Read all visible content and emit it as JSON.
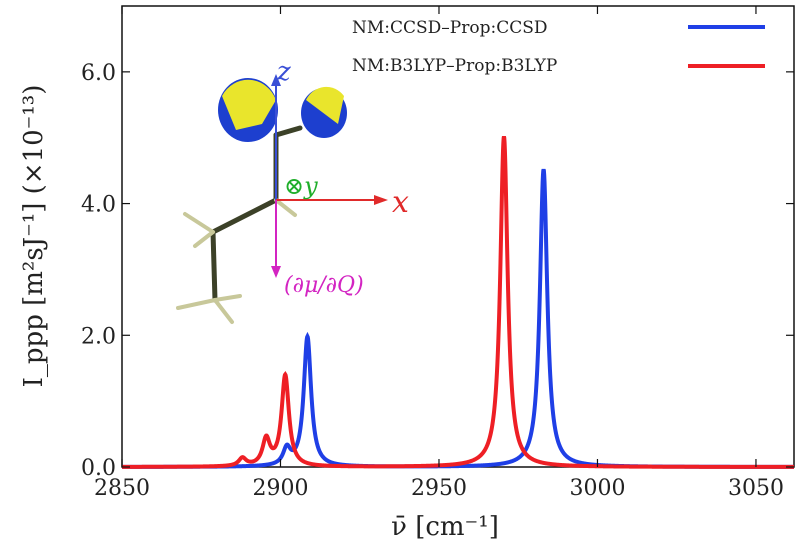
{
  "chart_data": {
    "type": "line",
    "xlabel": "ν̄ [cm⁻¹]",
    "ylabel": "I_ppp [m²sJ⁻¹] (×10⁻¹³)",
    "xlim": [
      2850,
      3062
    ],
    "ylim": [
      0,
      7.0
    ],
    "x_ticks": [
      2850,
      2900,
      2950,
      3000,
      3050
    ],
    "y_ticks": [
      0.0,
      2.0,
      4.0,
      6.0
    ],
    "x_tick_labels": [
      "2850",
      "2900",
      "2950",
      "3000",
      "3050"
    ],
    "y_tick_labels": [
      "0.0",
      "2.0",
      "4.0",
      "6.0"
    ],
    "grid": false,
    "legend_placement": "top-right",
    "series": [
      {
        "name": "NM:CCSD–Prop:CCSD",
        "color": "#1f3fe6",
        "peaks": [
          {
            "x": 2902,
            "height": 0.25
          },
          {
            "x": 2908.5,
            "height": 1.97
          },
          {
            "x": 2983,
            "height": 4.52
          }
        ]
      },
      {
        "name": "NM:B3LYP–Prop:B3LYP",
        "color": "#ee1f25",
        "peaks": [
          {
            "x": 2888,
            "height": 0.12
          },
          {
            "x": 2895.5,
            "height": 0.4
          },
          {
            "x": 2901.5,
            "height": 1.38
          },
          {
            "x": 2970.5,
            "height": 5.02
          }
        ]
      }
    ],
    "inset": {
      "axis_labels": {
        "z": "z",
        "y": "⊗y",
        "x": "x",
        "dipole": "(∂μ/∂Q)"
      },
      "colors": {
        "z": "#3a4fd6",
        "y": "#1fae2a",
        "x": "#e02a2a",
        "dipole": "#d324c2",
        "orbital_yellow": "#e9e52c",
        "orbital_blue": "#1d3fcf",
        "bond": "#3c4128",
        "hydrogen": "#c8c89a"
      }
    }
  }
}
